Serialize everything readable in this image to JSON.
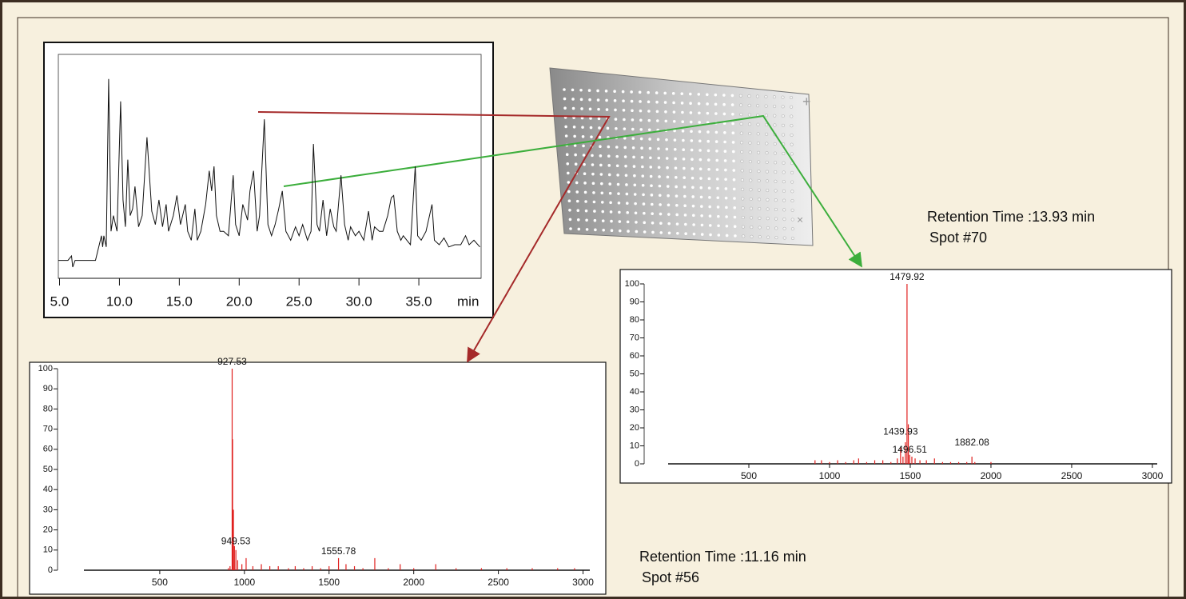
{
  "chart_data": [
    {
      "type": "line",
      "x_label": "min",
      "color": "#111111",
      "x": [
        4.9,
        5.7,
        6.0,
        6.1,
        6.3,
        8.0,
        8.5,
        8.6,
        8.7,
        8.9,
        9.1,
        9.3,
        9.5,
        9.8,
        10.1,
        10.3,
        10.5,
        10.7,
        10.9,
        11.1,
        11.3,
        11.6,
        11.9,
        12.3,
        12.7,
        13.0,
        13.3,
        13.6,
        13.9,
        14.1,
        14.5,
        14.8,
        15.1,
        15.5,
        15.7,
        16.0,
        16.3,
        16.5,
        16.8,
        17.2,
        17.5,
        17.7,
        17.9,
        18.1,
        18.4,
        18.7,
        19.1,
        19.5,
        19.7,
        20.0,
        20.3,
        20.7,
        20.9,
        21.2,
        21.5,
        21.7,
        22.1,
        22.4,
        22.7,
        23.0,
        23.3,
        23.6,
        23.9,
        24.3,
        24.7,
        25.0,
        25.3,
        25.7,
        26.0,
        26.2,
        26.5,
        26.7,
        27.0,
        27.3,
        27.6,
        27.9,
        28.1,
        28.5,
        28.8,
        29.1,
        29.3,
        29.7,
        30.0,
        30.4,
        30.8,
        31.1,
        31.3,
        31.7,
        32.0,
        32.4,
        32.7,
        32.9,
        33.2,
        33.5,
        33.7,
        34.0,
        34.3,
        34.7,
        34.9,
        35.2,
        35.6,
        36.1,
        36.3,
        36.7,
        37.1,
        37.5,
        38.0,
        38.5,
        38.9,
        39.2,
        39.6,
        40.1
      ],
      "values": [
        8,
        8,
        10,
        5,
        8,
        8,
        19,
        14,
        19,
        14,
        89,
        21,
        28,
        21,
        79,
        35,
        23,
        53,
        28,
        31,
        41,
        23,
        28,
        63,
        30,
        24,
        35,
        23,
        33,
        21,
        28,
        37,
        24,
        33,
        21,
        17,
        31,
        17,
        21,
        33,
        48,
        39,
        50,
        28,
        21,
        21,
        19,
        46,
        24,
        19,
        33,
        26,
        39,
        48,
        21,
        28,
        71,
        24,
        19,
        24,
        31,
        39,
        21,
        17,
        23,
        19,
        24,
        17,
        21,
        60,
        24,
        21,
        35,
        19,
        31,
        23,
        21,
        46,
        24,
        17,
        23,
        19,
        21,
        17,
        30,
        17,
        23,
        21,
        21,
        28,
        36,
        37,
        21,
        17,
        19,
        17,
        15,
        50,
        19,
        17,
        21,
        33,
        17,
        15,
        18,
        14,
        15,
        15,
        19,
        15,
        17,
        14
      ],
      "xlim": [
        4.9,
        40.2
      ],
      "ylim": [
        0,
        100
      ],
      "xticks": [
        {
          "value": 5,
          "label": "5.0"
        },
        {
          "value": 10,
          "label": "10.0"
        },
        {
          "value": 15,
          "label": "15.0"
        },
        {
          "value": 20,
          "label": "20.0"
        },
        {
          "value": 25,
          "label": "25.0"
        },
        {
          "value": 30,
          "label": "30.0"
        },
        {
          "value": 35,
          "label": "35.0"
        }
      ]
    },
    {
      "type": "spectrum",
      "color": "#e0201f",
      "x": [
        905,
        915,
        927.53,
        930,
        935,
        941,
        949.53,
        960,
        985,
        1010,
        1050,
        1100,
        1150,
        1200,
        1260,
        1300,
        1350,
        1400,
        1450,
        1500,
        1555.78,
        1600,
        1650,
        1700,
        1770,
        1850,
        1920,
        2000,
        2130,
        2250,
        2400,
        2550,
        2700,
        2850,
        2950
      ],
      "values": [
        1,
        2,
        100,
        65,
        30,
        12,
        10,
        5,
        3,
        6,
        2,
        3,
        2,
        2,
        1,
        2,
        1,
        2,
        1,
        2,
        6,
        3,
        2,
        1,
        6,
        1,
        3,
        1,
        3,
        1,
        1,
        1,
        1,
        1,
        1
      ],
      "peak_labels": [
        {
          "x": 927.53,
          "y": 100
        },
        {
          "x": 949.53,
          "y": 11
        },
        {
          "x": 1555.78,
          "y": 6
        }
      ],
      "caption": [
        "Retention Time :11.16 min",
        "Spot #56"
      ],
      "xlim": [
        52,
        3040
      ],
      "ylim": [
        0,
        100
      ],
      "xticks": [
        500,
        1000,
        1500,
        2000,
        2500,
        3000
      ],
      "yticks": [
        0,
        10,
        20,
        30,
        40,
        50,
        60,
        70,
        80,
        90,
        100
      ]
    },
    {
      "type": "spectrum",
      "color": "#e0201f",
      "x": [
        910,
        950,
        1000,
        1050,
        1100,
        1150,
        1180,
        1230,
        1280,
        1330,
        1380,
        1420,
        1439.93,
        1455,
        1470,
        1479.92,
        1488,
        1496.51,
        1510,
        1530,
        1560,
        1600,
        1650,
        1700,
        1750,
        1800,
        1850,
        1882.08,
        1900,
        2000
      ],
      "values": [
        2,
        2,
        1,
        2,
        1,
        2,
        3,
        1,
        2,
        2,
        1,
        3,
        9,
        4,
        12,
        100,
        22,
        5,
        4,
        3,
        2,
        2,
        3,
        1,
        1,
        1,
        1,
        4,
        1,
        1
      ],
      "peak_labels": [
        {
          "x": 1479.92,
          "y": 100
        },
        {
          "x": 1439.93,
          "y": 14
        },
        {
          "x": 1496.51,
          "y": 4
        },
        {
          "x": 1882.08,
          "y": 8
        }
      ],
      "caption": [
        "Retention Time :13.93 min",
        "Spot #70"
      ],
      "xlim": [
        0,
        3030
      ],
      "ylim": [
        0,
        100
      ],
      "xticks": [
        500,
        1000,
        1500,
        2000,
        2500,
        3000
      ],
      "yticks": [
        0,
        10,
        20,
        30,
        40,
        50,
        60,
        70,
        80,
        90,
        100
      ]
    }
  ]
}
